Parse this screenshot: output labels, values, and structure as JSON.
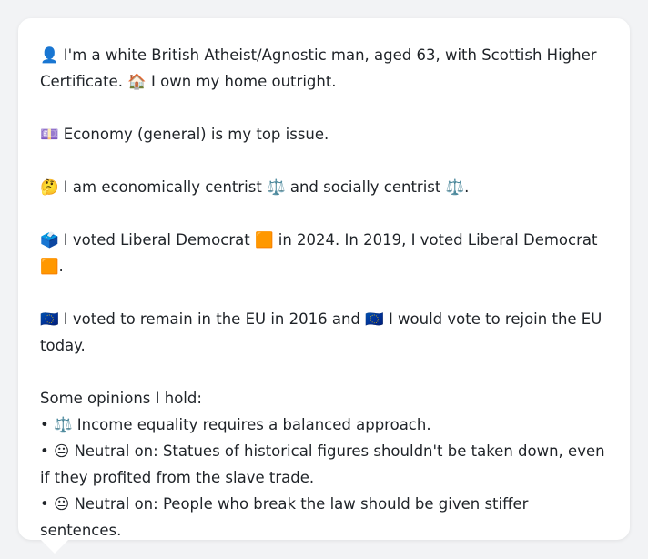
{
  "profile": {
    "identity": {
      "emoji": "👤",
      "text": "I'm a white British Atheist/Agnostic man, aged 63, with Scottish Higher Certificate.",
      "home_emoji": "🏠",
      "home_text": "I own my home outright."
    },
    "top_issue": {
      "emoji": "💷",
      "text": "Economy (general) is my top issue."
    },
    "position": {
      "emoji": "🤔",
      "text_a": "I am economically centrist",
      "emoji_a": "⚖️",
      "text_b": "and socially centrist",
      "emoji_b": "⚖️",
      "text_end": "."
    },
    "votes": {
      "emoji": "🗳️",
      "text_a": "I voted Liberal Democrat",
      "party_emoji_a": "🟧",
      "text_b": "in 2024. In 2019, I voted Liberal Democrat",
      "party_emoji_b": "🟧",
      "text_end": "."
    },
    "eu": {
      "emoji_a": "🇪🇺",
      "text_a": "I voted to remain in the EU in 2016 and",
      "emoji_b": "🇪🇺",
      "text_b": "I would vote to rejoin the EU today."
    },
    "opinions": {
      "heading": "Some opinions I hold:",
      "bullet": "•",
      "items": [
        {
          "emoji": "⚖️",
          "text": "Income equality requires a balanced approach."
        },
        {
          "emoji": "😐",
          "text": "Neutral on: Statues of historical figures shouldn't be taken down, even if they profited from the slave trade."
        },
        {
          "emoji": "😐",
          "text": "Neutral on: People who break the law should be given stiffer sentences."
        }
      ]
    }
  }
}
